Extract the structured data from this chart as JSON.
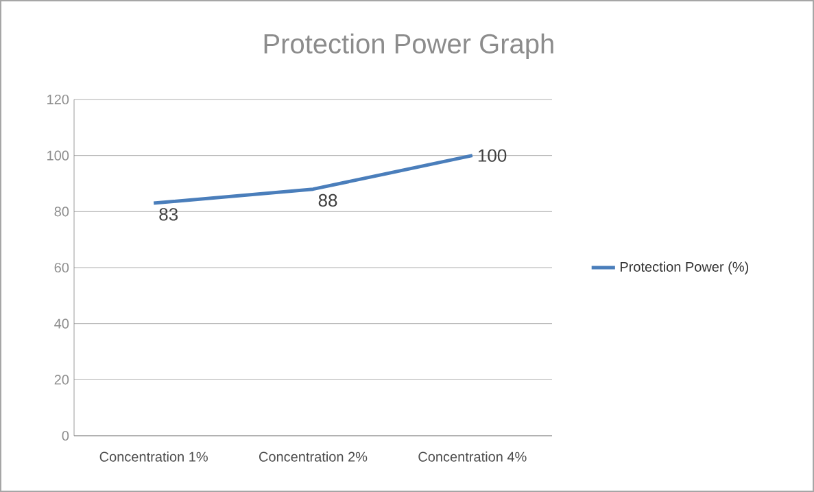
{
  "chart_data": {
    "type": "line",
    "title": "Protection Power Graph",
    "categories": [
      "Concentration 1%",
      "Concentration 2%",
      "Concentration 4%"
    ],
    "series": [
      {
        "name": "Protection Power (%)",
        "color": "#4a7ebb",
        "values": [
          83,
          88,
          100
        ]
      }
    ],
    "ylim": [
      0,
      120
    ],
    "yticks": [
      0,
      20,
      40,
      60,
      80,
      100,
      120
    ],
    "grid": "y",
    "legend": "right",
    "data_labels": true,
    "marker": "none"
  }
}
